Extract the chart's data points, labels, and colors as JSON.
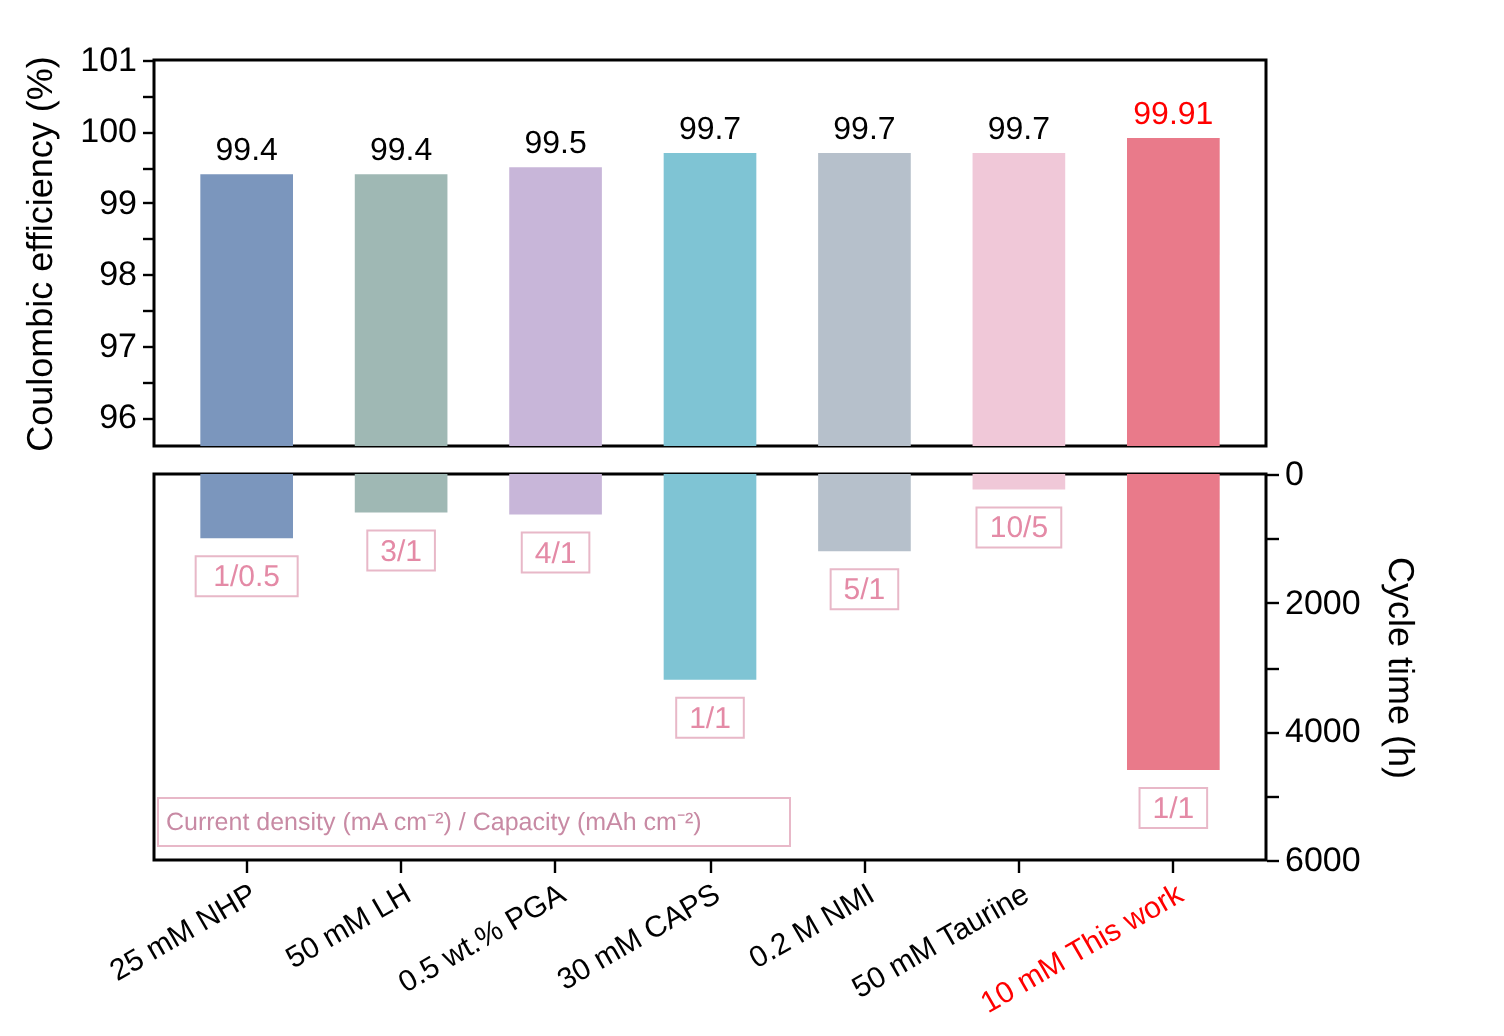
{
  "chart_data": [
    {
      "type": "bar",
      "ylabel": "Coulombic efficiency (%)",
      "categories": [
        null,
        null,
        null,
        null,
        null,
        null,
        null
      ],
      "values": [
        99.4,
        99.4,
        99.5,
        99.7,
        99.7,
        99.7,
        99.91
      ],
      "colors": [
        "#7b96bd",
        "#9fb8b4",
        "#c8b6d9",
        "#7fc4d4",
        "#b6c0cb",
        "#f0c8d8",
        "#e97a8a"
      ],
      "ylim": [
        95.6,
        101
      ],
      "yticks": [
        {
          "value": 96,
          "label": "96"
        },
        {
          "value": 96.5,
          "label": null
        },
        {
          "value": 97,
          "label": "97"
        },
        {
          "value": 97.5,
          "label": null
        },
        {
          "value": 98,
          "label": "98"
        },
        {
          "value": 98.5,
          "label": null
        },
        {
          "value": 99,
          "label": "99"
        },
        {
          "value": 99.5,
          "label": null
        },
        {
          "value": 100,
          "label": "100"
        },
        {
          "value": 100.5,
          "label": null
        },
        {
          "value": 101,
          "label": "101"
        }
      ],
      "data_labels": true,
      "tick_labels": "y"
    },
    {
      "type": "bar",
      "categories": [
        "25 mM NHP",
        "50 mM LH",
        "0.5 wt.% PGA",
        "30 mM CAPS",
        "0.2 M NMI",
        "50 mM Taurine",
        "10 mM This work"
      ],
      "colors": [
        "#7b96bd",
        "#9fb8b4",
        "#c8b6d9",
        "#7fc4d4",
        "#b6c0cb",
        "#f0c8d8",
        "#e97a8a"
      ],
      "series": [
        {
          "axis": "y2",
          "values": [
            1000,
            600,
            630,
            3200,
            1200,
            240,
            4600
          ]
        }
      ],
      "y2lim": [
        6000,
        0
      ],
      "y2ticks": [
        {
          "value": 0,
          "label": "0"
        },
        {
          "value": 1000,
          "label": null
        },
        {
          "value": 2000,
          "label": "2000"
        },
        {
          "value": 3000,
          "label": null
        },
        {
          "value": 4000,
          "label": "4000"
        },
        {
          "value": 5000,
          "label": null
        },
        {
          "value": 6000,
          "label": "6000"
        }
      ],
      "y2label": "Cycle time (h)",
      "annotations": [
        "1/0.5",
        "3/1",
        "4/1",
        "1/1",
        "5/1",
        "10/5",
        "1/1",
        "Current density (mA cm⁻²) / Capacity (mAh cm⁻²)"
      ]
    }
  ]
}
